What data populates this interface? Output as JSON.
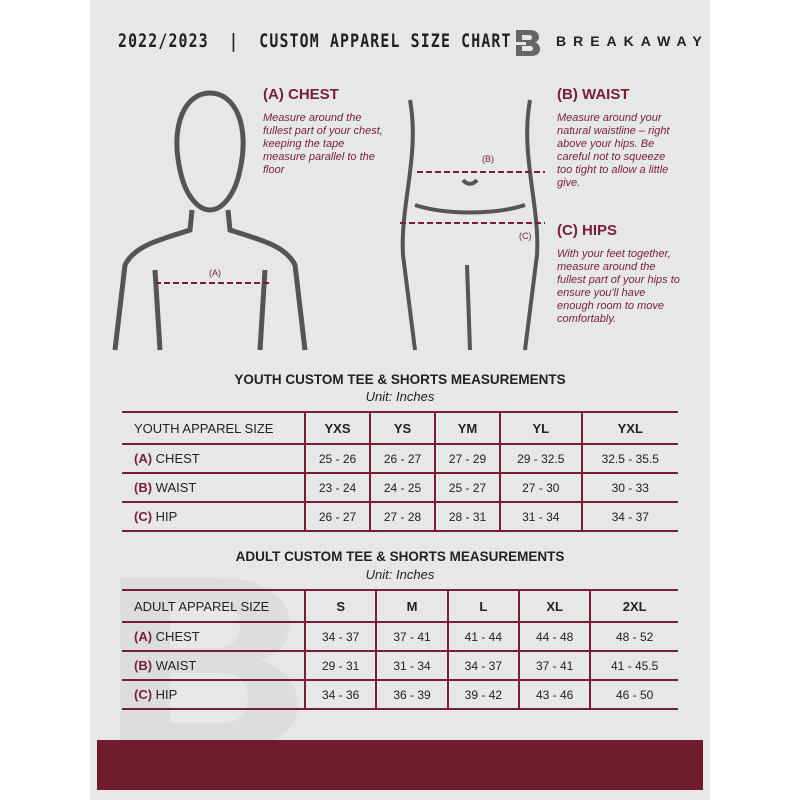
{
  "header": {
    "title": "2022/2023  |  CUSTOM APPAREL SIZE CHART",
    "brand": "BREAKAWAY"
  },
  "guide": {
    "chest": {
      "marker": "(A)",
      "heading": "(A) CHEST",
      "text": "Measure around the fullest part of your chest, keeping the tape measure parallel to the floor"
    },
    "waist": {
      "marker": "(B)",
      "heading": "(B) WAIST",
      "text": "Measure around your natural waistline – right above your hips. Be careful not to squeeze too tight to allow a little give."
    },
    "hips": {
      "marker": "(C)",
      "heading": "(C) HIPS",
      "text": "With your feet together, measure around the fullest part of your hips to ensure you'll have enough room to move comfortably."
    }
  },
  "youth": {
    "title": "YOUTH CUSTOM TEE & SHORTS MEASUREMENTS",
    "unit": "Unit: Inches",
    "size_label": "YOUTH APPAREL SIZE",
    "sizes": [
      "YXS",
      "YS",
      "YM",
      "YL",
      "YXL"
    ],
    "rows": [
      {
        "letter": "(A)",
        "name": "CHEST",
        "values": [
          "25 - 26",
          "26 - 27",
          "27 - 29",
          "29 - 32.5",
          "32.5 - 35.5"
        ]
      },
      {
        "letter": "(B)",
        "name": "WAIST",
        "values": [
          "23 - 24",
          "24 - 25",
          "25 - 27",
          "27 - 30",
          "30 - 33"
        ]
      },
      {
        "letter": "(C)",
        "name": "HIP",
        "values": [
          "26 - 27",
          "27 - 28",
          "28 - 31",
          "31 - 34",
          "34 - 37"
        ]
      }
    ]
  },
  "adult": {
    "title": "ADULT CUSTOM TEE & SHORTS MEASUREMENTS",
    "unit": "Unit: Inches",
    "size_label": "ADULT APPAREL SIZE",
    "sizes": [
      "S",
      "M",
      "L",
      "XL",
      "2XL"
    ],
    "rows": [
      {
        "letter": "(A)",
        "name": "CHEST",
        "values": [
          "34 - 37",
          "37 - 41",
          "41 - 44",
          "44 - 48",
          "48 - 52"
        ]
      },
      {
        "letter": "(B)",
        "name": "WAIST",
        "values": [
          "29 - 31",
          "31 - 34",
          "34 - 37",
          "37 - 41",
          "41 - 45.5"
        ]
      },
      {
        "letter": "(C)",
        "name": "HIP",
        "values": [
          "34 - 36",
          "36 - 39",
          "39 - 42",
          "43 - 46",
          "46 - 50"
        ]
      }
    ]
  },
  "colors": {
    "accent": "#7a1f33",
    "band": "#701c2f",
    "background": "#e6e7e8"
  }
}
